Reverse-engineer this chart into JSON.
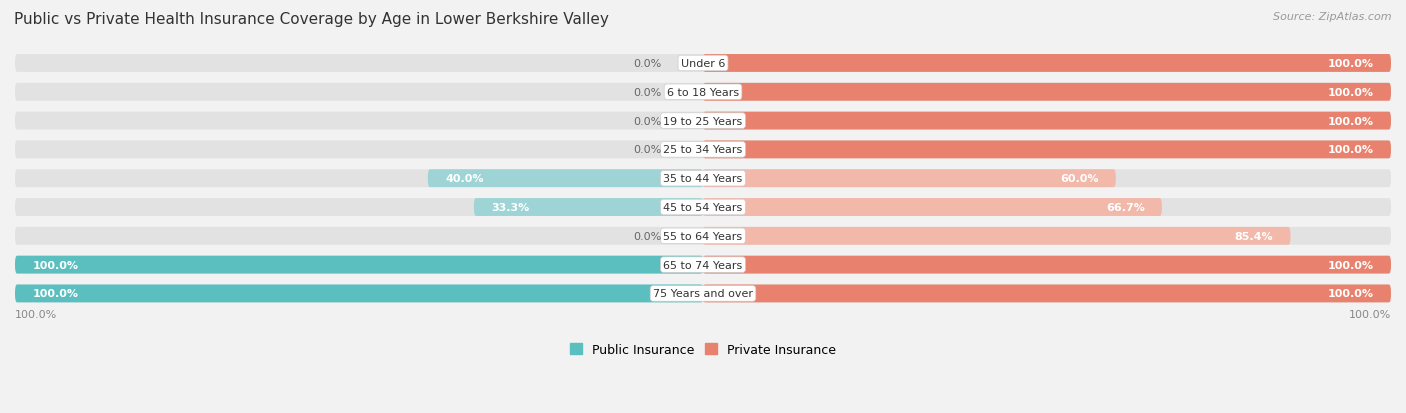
{
  "title": "Public vs Private Health Insurance Coverage by Age in Lower Berkshire Valley",
  "source": "Source: ZipAtlas.com",
  "categories": [
    "Under 6",
    "6 to 18 Years",
    "19 to 25 Years",
    "25 to 34 Years",
    "35 to 44 Years",
    "45 to 54 Years",
    "55 to 64 Years",
    "65 to 74 Years",
    "75 Years and over"
  ],
  "public_values": [
    0.0,
    0.0,
    0.0,
    0.0,
    40.0,
    33.3,
    0.0,
    100.0,
    100.0
  ],
  "private_values": [
    100.0,
    100.0,
    100.0,
    100.0,
    60.0,
    66.7,
    85.4,
    100.0,
    100.0
  ],
  "public_color": "#5bbfc0",
  "private_color": "#e8826e",
  "public_color_light": "#9ed4d5",
  "private_color_light": "#f2b8aa",
  "row_bg_color": "#e2e2e2",
  "bg_color": "#f2f2f2",
  "title_color": "#333333",
  "source_color": "#999999",
  "label_inside_color": "#ffffff",
  "label_outside_color": "#666666",
  "bar_height": 0.62,
  "label_fontsize": 8.0,
  "title_fontsize": 11,
  "source_fontsize": 8,
  "legend_fontsize": 9,
  "axis_label_fontsize": 8,
  "xlim": 100
}
